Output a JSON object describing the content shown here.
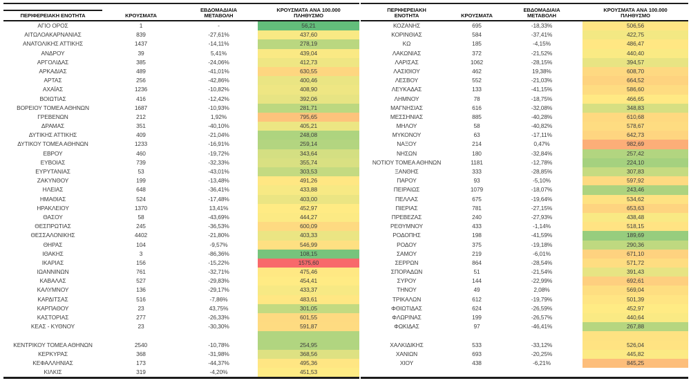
{
  "columns": {
    "region_single": "ΠΕΡΙΦΕΡΕΙΑΚΗ ΕΝΟΤΗΤΑ",
    "region_line1": "ΠΕΡΙΦΕΡΕΙΑΚΗ",
    "region_line2": "ΕΝΟΤΗΤΑ",
    "cases": "ΚΡΟΥΣΜΑΤΑ",
    "change_line1": "ΕΒΔΟΜΑΔΙΑΙΑ",
    "change_line2": "ΜΕΤΑΒΟΛΗ",
    "rate_line1": "ΚΡΟΥΣΜΑΤΑ ΑΝΑ 100.000",
    "rate_line2": "ΠΛΗΘΥΣΜΟ"
  },
  "color_scale": {
    "min_value": 56.21,
    "mid_value": 452.97,
    "max_value": 1575.6,
    "min_color": "#63BE7B",
    "mid_color": "#FFEB84",
    "max_color": "#F8696B"
  },
  "left_table": {
    "rows": [
      {
        "region": "ΑΓΙΟ ΟΡΟΣ",
        "cases": "1",
        "change": "-",
        "rate": "56,21"
      },
      {
        "region": "ΑΙΤΩΛΟΑΚΑΡΝΑΝΙΑΣ",
        "cases": "839",
        "change": "-27,61%",
        "rate": "437,60"
      },
      {
        "region": "ΑΝΑΤΟΛΙΚΗΣ ΑΤΤΙΚΗΣ",
        "cases": "1437",
        "change": "-14,11%",
        "rate": "278,19"
      },
      {
        "region": "ΑΝΔΡΟΥ",
        "cases": "39",
        "change": "5,41%",
        "rate": "439,04"
      },
      {
        "region": "ΑΡΓΟΛΙΔΑΣ",
        "cases": "385",
        "change": "-24,06%",
        "rate": "412,73"
      },
      {
        "region": "ΑΡΚΑΔΙΑΣ",
        "cases": "489",
        "change": "-41,01%",
        "rate": "630,55"
      },
      {
        "region": "ΑΡΤΑΣ",
        "cases": "256",
        "change": "-42,86%",
        "rate": "400,46"
      },
      {
        "region": "ΑΧΑΪΑΣ",
        "cases": "1236",
        "change": "-10,82%",
        "rate": "408,90"
      },
      {
        "region": "ΒΟΙΩΤΙΑΣ",
        "cases": "416",
        "change": "-12,42%",
        "rate": "392,06"
      },
      {
        "region": "ΒΟΡΕΙΟΥ ΤΟΜΕΑ ΑΘΗΝΩΝ",
        "cases": "1687",
        "change": "-10,93%",
        "rate": "281,71"
      },
      {
        "region": "ΓΡΕΒΕΝΩΝ",
        "cases": "212",
        "change": "1,92%",
        "rate": "795,65"
      },
      {
        "region": "ΔΡΑΜΑΣ",
        "cases": "351",
        "change": "-40,10%",
        "rate": "405,21"
      },
      {
        "region": "ΔΥΤΙΚΗΣ ΑΤΤΙΚΗΣ",
        "cases": "409",
        "change": "-21,04%",
        "rate": "248,08"
      },
      {
        "region": "ΔΥΤΙΚΟΥ ΤΟΜΕΑ ΑΘΗΝΩΝ",
        "cases": "1233",
        "change": "-16,91%",
        "rate": "259,14"
      },
      {
        "region": "ΕΒΡΟΥ",
        "cases": "460",
        "change": "-19,72%",
        "rate": "343,64"
      },
      {
        "region": "ΕΥΒΟΙΑΣ",
        "cases": "739",
        "change": "-32,33%",
        "rate": "355,74"
      },
      {
        "region": "ΕΥΡΥΤΑΝΙΑΣ",
        "cases": "53",
        "change": "-43,01%",
        "rate": "303,53"
      },
      {
        "region": "ΖΑΚΥΝΘΟΥ",
        "cases": "199",
        "change": "-13,48%",
        "rate": "491,26"
      },
      {
        "region": "ΗΛΕΙΑΣ",
        "cases": "648",
        "change": "-36,41%",
        "rate": "433,88"
      },
      {
        "region": "ΗΜΑΘΙΑΣ",
        "cases": "524",
        "change": "-17,48%",
        "rate": "403,00"
      },
      {
        "region": "ΗΡΑΚΛΕΙΟΥ",
        "cases": "1370",
        "change": "13,41%",
        "rate": "452,97"
      },
      {
        "region": "ΘΑΣΟΥ",
        "cases": "58",
        "change": "-43,69%",
        "rate": "444,27"
      },
      {
        "region": "ΘΕΣΠΡΩΤΙΑΣ",
        "cases": "245",
        "change": "-36,53%",
        "rate": "600,09"
      },
      {
        "region": "ΘΕΣΣΑΛΟΝΙΚΗΣ",
        "cases": "4402",
        "change": "-21,80%",
        "rate": "403,33"
      },
      {
        "region": "ΘΗΡΑΣ",
        "cases": "104",
        "change": "-9,57%",
        "rate": "546,99"
      },
      {
        "region": "ΙΘΑΚΗΣ",
        "cases": "3",
        "change": "-86,36%",
        "rate": "108,15"
      },
      {
        "region": "ΙΚΑΡΙΑΣ",
        "cases": "156",
        "change": "-15,22%",
        "rate": "1575,60"
      },
      {
        "region": "ΙΩΑΝΝΙΝΩΝ",
        "cases": "761",
        "change": "-32,71%",
        "rate": "475,46"
      },
      {
        "region": "ΚΑΒΑΛΑΣ",
        "cases": "527",
        "change": "-29,83%",
        "rate": "454,41"
      },
      {
        "region": "ΚΑΛΥΜΝΟΥ",
        "cases": "136",
        "change": "-29,17%",
        "rate": "433,37"
      },
      {
        "region": "ΚΑΡΔΙΤΣΑΣ",
        "cases": "516",
        "change": "-7,86%",
        "rate": "483,61"
      },
      {
        "region": "ΚΑΡΠΑΘΟΥ",
        "cases": "23",
        "change": "43,75%",
        "rate": "301,05"
      },
      {
        "region": "ΚΑΣΤΟΡΙΑΣ",
        "cases": "277",
        "change": "-26,33%",
        "rate": "601,55"
      },
      {
        "region": "ΚΕΑΣ - ΚΥΘΝΟΥ",
        "cases": "23",
        "change": "-30,30%",
        "rate": "591,87"
      },
      {
        "region": "",
        "cases": "",
        "change": "",
        "rate": "",
        "rate_color": "#B1D580"
      },
      {
        "region": "ΚΕΝΤΡΙΚΟΥ ΤΟΜΕΑ ΑΘΗΝΩΝ",
        "cases": "2540",
        "change": "-10,78%",
        "rate": "254,95"
      },
      {
        "region": "ΚΕΡΚΥΡΑΣ",
        "cases": "368",
        "change": "-31,98%",
        "rate": "368,56"
      },
      {
        "region": "ΚΕΦΑΛΛΗΝΙΑΣ",
        "cases": "173",
        "change": "-44,37%",
        "rate": "495,36"
      },
      {
        "region": "ΚΙΛΚΙΣ",
        "cases": "319",
        "change": "-4,20%",
        "rate": "451,53"
      }
    ]
  },
  "right_table": {
    "rows": [
      {
        "region": "ΚΟΖΑΝΗΣ",
        "cases": "695",
        "change": "-18,33%",
        "rate": "506,56"
      },
      {
        "region": "ΚΟΡΙΝΘΙΑΣ",
        "cases": "584",
        "change": "-37,41%",
        "rate": "422,75"
      },
      {
        "region": "ΚΩ",
        "cases": "185",
        "change": "-4,15%",
        "rate": "486,47"
      },
      {
        "region": "ΛΑΚΩΝΙΑΣ",
        "cases": "372",
        "change": "-21,52%",
        "rate": "440,40"
      },
      {
        "region": "ΛΑΡΙΣΑΣ",
        "cases": "1062",
        "change": "-28,15%",
        "rate": "394,57"
      },
      {
        "region": "ΛΑΣΙΘΙΟΥ",
        "cases": "462",
        "change": "19,38%",
        "rate": "608,70"
      },
      {
        "region": "ΛΕΣΒΟΥ",
        "cases": "552",
        "change": "-21,03%",
        "rate": "664,52"
      },
      {
        "region": "ΛΕΥΚΑΔΑΣ",
        "cases": "133",
        "change": "-41,15%",
        "rate": "586,60"
      },
      {
        "region": "ΛΗΜΝΟΥ",
        "cases": "78",
        "change": "-18,75%",
        "rate": "466,65"
      },
      {
        "region": "ΜΑΓΝΗΣΙΑΣ",
        "cases": "616",
        "change": "-32,08%",
        "rate": "348,83"
      },
      {
        "region": "ΜΕΣΣΗΝΙΑΣ",
        "cases": "885",
        "change": "-40,28%",
        "rate": "610,68"
      },
      {
        "region": "ΜΗΛΟΥ",
        "cases": "58",
        "change": "-40,82%",
        "rate": "578,67"
      },
      {
        "region": "ΜΥΚΟΝΟΥ",
        "cases": "63",
        "change": "-17,11%",
        "rate": "642,73"
      },
      {
        "region": "ΝΑΞΟΥ",
        "cases": "214",
        "change": "0,47%",
        "rate": "982,69"
      },
      {
        "region": "ΝΗΣΩΝ",
        "cases": "180",
        "change": "-32,84%",
        "rate": "257,42"
      },
      {
        "region": "ΝΟΤΙΟΥ ΤΟΜΕΑ ΑΘΗΝΩΝ",
        "cases": "1181",
        "change": "-12,78%",
        "rate": "224,10"
      },
      {
        "region": "ΞΑΝΘΗΣ",
        "cases": "333",
        "change": "-28,85%",
        "rate": "307,83"
      },
      {
        "region": "ΠΑΡΟΥ",
        "cases": "93",
        "change": "-5,10%",
        "rate": "597,92"
      },
      {
        "region": "ΠΕΙΡΑΙΩΣ",
        "cases": "1079",
        "change": "-18,07%",
        "rate": "243,46"
      },
      {
        "region": "ΠΕΛΛΑΣ",
        "cases": "675",
        "change": "-19,64%",
        "rate": "534,62"
      },
      {
        "region": "ΠΙΕΡΙΑΣ",
        "cases": "781",
        "change": "-27,15%",
        "rate": "653,63"
      },
      {
        "region": "ΠΡΕΒΕΖΑΣ",
        "cases": "240",
        "change": "-27,93%",
        "rate": "438,48"
      },
      {
        "region": "ΡΕΘΥΜΝΟΥ",
        "cases": "433",
        "change": "-1,14%",
        "rate": "518,15"
      },
      {
        "region": "ΡΟΔΟΠΗΣ",
        "cases": "198",
        "change": "-41,59%",
        "rate": "189,69"
      },
      {
        "region": "ΡΟΔΟΥ",
        "cases": "375",
        "change": "-19,18%",
        "rate": "290,36"
      },
      {
        "region": "ΣΑΜΟΥ",
        "cases": "219",
        "change": "-6,01%",
        "rate": "671,10"
      },
      {
        "region": "ΣΕΡΡΩΝ",
        "cases": "864",
        "change": "-28,54%",
        "rate": "571,72"
      },
      {
        "region": "ΣΠΟΡΑΔΩΝ",
        "cases": "51",
        "change": "-21,54%",
        "rate": "391,43"
      },
      {
        "region": "ΣΥΡΟΥ",
        "cases": "144",
        "change": "-22,99%",
        "rate": "692,61"
      },
      {
        "region": "ΤΗΝΟΥ",
        "cases": "49",
        "change": "2,08%",
        "rate": "569,04"
      },
      {
        "region": "ΤΡΙΚΑΛΩΝ",
        "cases": "612",
        "change": "-19,79%",
        "rate": "501,39"
      },
      {
        "region": "ΦΘΙΩΤΙΔΑΣ",
        "cases": "624",
        "change": "-26,59%",
        "rate": "452,97"
      },
      {
        "region": "ΦΛΩΡΙΝΑΣ",
        "cases": "199",
        "change": "-26,57%",
        "rate": "440,64"
      },
      {
        "region": "ΦΩΚΙΔΑΣ",
        "cases": "97",
        "change": "-46,41%",
        "rate": "267,88"
      },
      {
        "region": "",
        "cases": "",
        "change": "",
        "rate": "",
        "rate_color": "#FEE282"
      },
      {
        "region": "ΧΑΛΚΙΔΙΚΗΣ",
        "cases": "533",
        "change": "-33,12%",
        "rate": "526,04"
      },
      {
        "region": "ΧΑΝΙΩΝ",
        "cases": "693",
        "change": "-20,25%",
        "rate": "445,82"
      },
      {
        "region": "ΧΙΟΥ",
        "cases": "438",
        "change": "-6,21%",
        "rate": "845,25"
      },
      {
        "region": "",
        "cases": "",
        "change": "",
        "rate": ""
      }
    ]
  }
}
